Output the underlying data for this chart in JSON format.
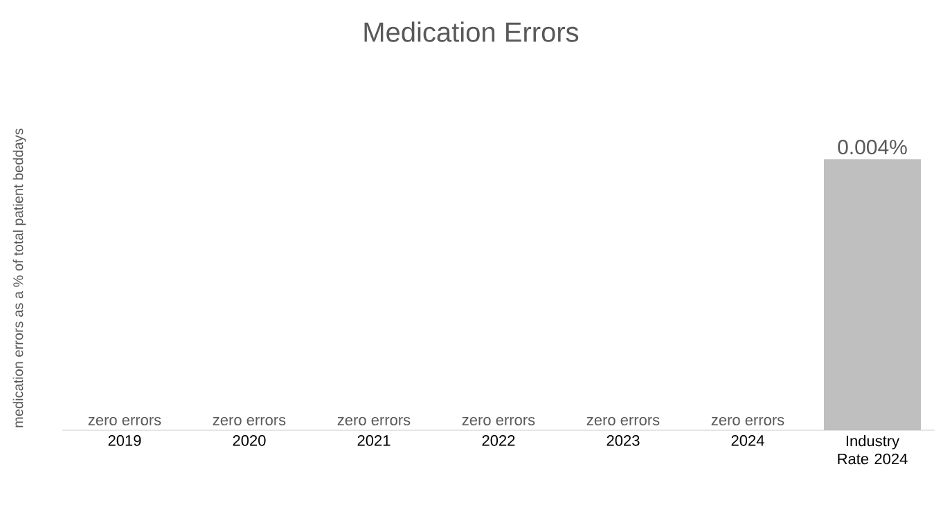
{
  "chart_data": {
    "type": "bar",
    "title": "Medication Errors",
    "ylabel": "medication errors as a % of total patient beddays",
    "categories": [
      "2019",
      "2020",
      "2021",
      "2022",
      "2023",
      "2024",
      "Industry Rate 2024"
    ],
    "values": [
      0,
      0,
      0,
      0,
      0,
      0,
      0.004
    ],
    "value_labels": [
      "zero errors",
      "zero errors",
      "zero errors",
      "zero errors",
      "zero errors",
      "zero errors",
      "0.004%"
    ],
    "color": "#bfbfbf",
    "tick_labels": "x"
  }
}
